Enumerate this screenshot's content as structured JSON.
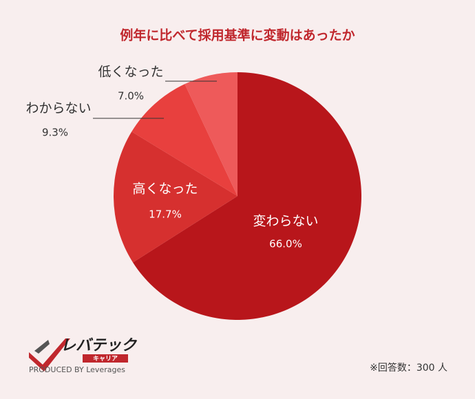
{
  "chart_data": {
    "type": "pie",
    "title": "例年に比べて採用基準に変動はあったか",
    "categories": [
      "変わらない",
      "高くなった",
      "わからない",
      "低くなった"
    ],
    "values": [
      66.0,
      17.7,
      9.3,
      7.0
    ],
    "value_labels": [
      "66.0%",
      "17.7%",
      "9.3%",
      "7.0%"
    ],
    "colors": [
      "#b8161b",
      "#d6302f",
      "#e8403e",
      "#ee5a5a"
    ],
    "footer_note": "※回答数：300 人"
  },
  "logo": {
    "name": "レバテック",
    "sub": "キャリア",
    "produced": "PRODUCED BY Leverages"
  }
}
